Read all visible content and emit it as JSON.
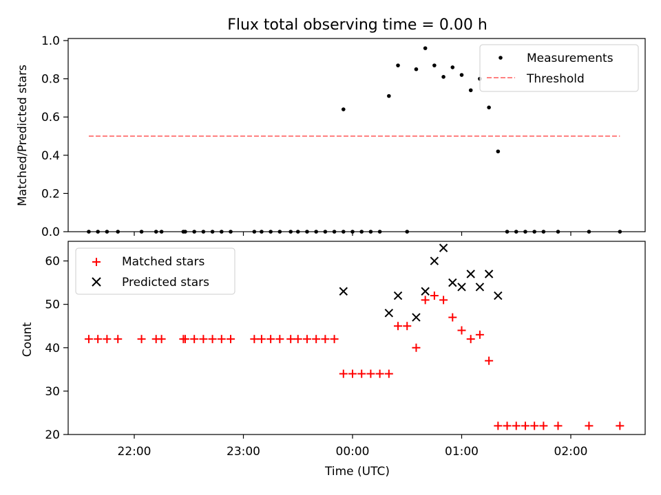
{
  "figure": {
    "title": "Flux total observing time = 0.00 h",
    "xlabel": "Time (UTC)",
    "x_ticks": [
      "22:00",
      "23:00",
      "00:00",
      "01:00",
      "02:00"
    ]
  },
  "chart_data": [
    {
      "type": "scatter",
      "panel": "top",
      "ylabel": "Matched/Predicted stars",
      "ylim": [
        0.0,
        1.0
      ],
      "y_ticks": [
        "0.0",
        "0.2",
        "0.4",
        "0.6",
        "0.8",
        "1.0"
      ],
      "legend_position": "upper-right",
      "series": [
        {
          "name": "Measurements",
          "marker": "dot",
          "color": "#000000",
          "points": [
            [
              "21:35",
              0.0
            ],
            [
              "21:40",
              0.0
            ],
            [
              "21:45",
              0.0
            ],
            [
              "21:51",
              0.0
            ],
            [
              "22:04",
              0.0
            ],
            [
              "22:12",
              0.0
            ],
            [
              "22:15",
              0.0
            ],
            [
              "22:27",
              0.0
            ],
            [
              "22:28",
              0.0
            ],
            [
              "22:33",
              0.0
            ],
            [
              "22:38",
              0.0
            ],
            [
              "22:43",
              0.0
            ],
            [
              "22:48",
              0.0
            ],
            [
              "22:53",
              0.0
            ],
            [
              "23:06",
              0.0
            ],
            [
              "23:10",
              0.0
            ],
            [
              "23:15",
              0.0
            ],
            [
              "23:20",
              0.0
            ],
            [
              "23:26",
              0.0
            ],
            [
              "23:30",
              0.0
            ],
            [
              "23:35",
              0.0
            ],
            [
              "23:40",
              0.0
            ],
            [
              "23:45",
              0.0
            ],
            [
              "23:50",
              0.0
            ],
            [
              "23:55",
              0.0
            ],
            [
              "23:55",
              0.64
            ],
            [
              "00:00",
              0.0
            ],
            [
              "00:05",
              0.0
            ],
            [
              "00:10",
              0.0
            ],
            [
              "00:15",
              0.0
            ],
            [
              "00:20",
              0.71
            ],
            [
              "00:25",
              0.87
            ],
            [
              "00:30",
              0.0
            ],
            [
              "00:35",
              0.85
            ],
            [
              "00:40",
              0.96
            ],
            [
              "00:45",
              0.87
            ],
            [
              "00:50",
              0.81
            ],
            [
              "00:55",
              0.86
            ],
            [
              "01:00",
              0.82
            ],
            [
              "01:05",
              0.74
            ],
            [
              "01:10",
              0.8
            ],
            [
              "01:15",
              0.65
            ],
            [
              "01:20",
              0.42
            ],
            [
              "01:25",
              0.0
            ],
            [
              "01:30",
              0.0
            ],
            [
              "01:35",
              0.0
            ],
            [
              "01:40",
              0.0
            ],
            [
              "01:45",
              0.0
            ],
            [
              "01:53",
              0.0
            ],
            [
              "02:10",
              0.0
            ],
            [
              "02:27",
              0.0
            ]
          ]
        },
        {
          "name": "Threshold",
          "style": "dashed",
          "color": "#ff8080",
          "points": [
            [
              "21:35",
              0.5
            ],
            [
              "02:27",
              0.5
            ]
          ]
        }
      ]
    },
    {
      "type": "scatter",
      "panel": "bottom",
      "ylabel": "Count",
      "ylim": [
        20,
        65
      ],
      "y_ticks": [
        "20",
        "30",
        "40",
        "50",
        "60"
      ],
      "legend_position": "upper-left",
      "series": [
        {
          "name": "Matched stars",
          "marker": "plus",
          "color": "#ff0000",
          "points": [
            [
              "21:35",
              42
            ],
            [
              "21:40",
              42
            ],
            [
              "21:45",
              42
            ],
            [
              "21:51",
              42
            ],
            [
              "22:04",
              42
            ],
            [
              "22:12",
              42
            ],
            [
              "22:15",
              42
            ],
            [
              "22:27",
              42
            ],
            [
              "22:28",
              42
            ],
            [
              "22:33",
              42
            ],
            [
              "22:38",
              42
            ],
            [
              "22:43",
              42
            ],
            [
              "22:48",
              42
            ],
            [
              "22:53",
              42
            ],
            [
              "23:06",
              42
            ],
            [
              "23:10",
              42
            ],
            [
              "23:15",
              42
            ],
            [
              "23:20",
              42
            ],
            [
              "23:26",
              42
            ],
            [
              "23:30",
              42
            ],
            [
              "23:35",
              42
            ],
            [
              "23:40",
              42
            ],
            [
              "23:45",
              42
            ],
            [
              "23:50",
              42
            ],
            [
              "23:55",
              34
            ],
            [
              "00:00",
              34
            ],
            [
              "00:05",
              34
            ],
            [
              "00:10",
              34
            ],
            [
              "00:15",
              34
            ],
            [
              "00:20",
              34
            ],
            [
              "00:25",
              45
            ],
            [
              "00:30",
              45
            ],
            [
              "00:35",
              40
            ],
            [
              "00:40",
              51
            ],
            [
              "00:45",
              52
            ],
            [
              "00:50",
              51
            ],
            [
              "00:55",
              47
            ],
            [
              "01:00",
              44
            ],
            [
              "01:05",
              42
            ],
            [
              "01:10",
              43
            ],
            [
              "01:15",
              37
            ],
            [
              "01:20",
              22
            ],
            [
              "01:25",
              22
            ],
            [
              "01:30",
              22
            ],
            [
              "01:35",
              22
            ],
            [
              "01:40",
              22
            ],
            [
              "01:45",
              22
            ],
            [
              "01:53",
              22
            ],
            [
              "02:10",
              22
            ],
            [
              "02:27",
              22
            ]
          ]
        },
        {
          "name": "Predicted stars",
          "marker": "x",
          "color": "#000000",
          "points": [
            [
              "23:55",
              53
            ],
            [
              "00:20",
              48
            ],
            [
              "00:25",
              52
            ],
            [
              "00:35",
              47
            ],
            [
              "00:40",
              53
            ],
            [
              "00:45",
              60
            ],
            [
              "00:50",
              63
            ],
            [
              "00:55",
              55
            ],
            [
              "01:00",
              54
            ],
            [
              "01:05",
              57
            ],
            [
              "01:10",
              54
            ],
            [
              "01:15",
              57
            ],
            [
              "01:20",
              52
            ]
          ]
        }
      ]
    }
  ]
}
